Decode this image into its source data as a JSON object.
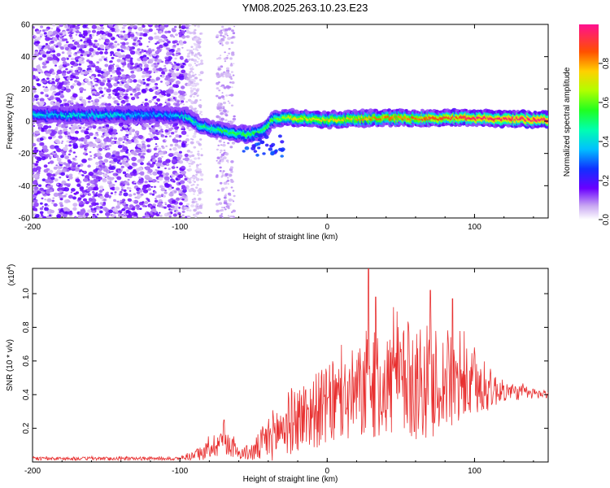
{
  "title": "YM08.2025.263.10.23.E23",
  "chart_data": [
    {
      "type": "heatmap",
      "xlabel": "Height of straight line (km)",
      "ylabel": "Frequency (Hz)",
      "xlim": [
        -200,
        150
      ],
      "ylim": [
        -60,
        60
      ],
      "xticks": [
        -200,
        -100,
        0,
        100
      ],
      "yticks": [
        -60,
        -40,
        -20,
        0,
        20,
        40,
        60
      ],
      "xtick_labels": [
        "-200",
        "-100",
        "0",
        "100"
      ],
      "ytick_labels": [
        "-60",
        "-40",
        "-20",
        "0",
        "20",
        "40",
        "60"
      ],
      "colorbar": {
        "label": "Normalized spectral amplitude",
        "range": [
          0,
          1
        ],
        "ticks": [
          0.0,
          0.2,
          0.4,
          0.6,
          0.8
        ],
        "tick_labels": [
          "0.0",
          "0.2",
          "0.4",
          "0.6",
          "0.8"
        ]
      },
      "ridge": [
        {
          "x": -200,
          "y": 4,
          "amp": 0.4
        },
        {
          "x": -150,
          "y": 4,
          "amp": 0.4
        },
        {
          "x": -110,
          "y": 4,
          "amp": 0.35
        },
        {
          "x": -95,
          "y": 3,
          "amp": 0.45
        },
        {
          "x": -85,
          "y": -3,
          "amp": 0.5
        },
        {
          "x": -75,
          "y": -5,
          "amp": 0.5
        },
        {
          "x": -65,
          "y": -7,
          "amp": 0.55
        },
        {
          "x": -55,
          "y": -8,
          "amp": 0.55
        },
        {
          "x": -45,
          "y": -7,
          "amp": 0.55
        },
        {
          "x": -35,
          "y": 2,
          "amp": 0.6
        },
        {
          "x": -20,
          "y": 2,
          "amp": 0.75
        },
        {
          "x": 0,
          "y": 1,
          "amp": 0.75
        },
        {
          "x": 30,
          "y": 2,
          "amp": 0.8
        },
        {
          "x": 60,
          "y": 2,
          "amp": 0.85
        },
        {
          "x": 100,
          "y": 2,
          "amp": 0.95
        },
        {
          "x": 150,
          "y": 1,
          "amp": 1.0
        }
      ]
    },
    {
      "type": "line",
      "xlabel": "Height of straight line (km)",
      "ylabel": "SNR (10 * v/v)",
      "y_multiplier": "(x10",
      "y_multiplier_exp": "4",
      "xlim": [
        -200,
        150
      ],
      "ylim": [
        0.0,
        1.15
      ],
      "xticks": [
        -200,
        -100,
        0,
        100
      ],
      "yticks": [
        0.2,
        0.4,
        0.6,
        0.8,
        1.0
      ],
      "xtick_labels": [
        "-200",
        "-100",
        "0",
        "100"
      ],
      "ytick_labels": [
        "0.2",
        "0.4",
        "0.6",
        "0.8",
        "1.0"
      ],
      "series": [
        {
          "color": "#e83030",
          "envelope": [
            {
              "x": -200,
              "base": 0.02,
              "amp": 0.01
            },
            {
              "x": -120,
              "base": 0.02,
              "amp": 0.01
            },
            {
              "x": -100,
              "base": 0.02,
              "amp": 0.01
            },
            {
              "x": -85,
              "base": 0.05,
              "amp": 0.04
            },
            {
              "x": -70,
              "base": 0.14,
              "amp": 0.1
            },
            {
              "x": -60,
              "base": 0.05,
              "amp": 0.03
            },
            {
              "x": -50,
              "base": 0.06,
              "amp": 0.06
            },
            {
              "x": -40,
              "base": 0.14,
              "amp": 0.14
            },
            {
              "x": -25,
              "base": 0.24,
              "amp": 0.2
            },
            {
              "x": -10,
              "base": 0.3,
              "amp": 0.22
            },
            {
              "x": 10,
              "base": 0.36,
              "amp": 0.26
            },
            {
              "x": 25,
              "base": 0.42,
              "amp": 0.3
            },
            {
              "x": 40,
              "base": 0.46,
              "amp": 0.32
            },
            {
              "x": 60,
              "base": 0.48,
              "amp": 0.36
            },
            {
              "x": 80,
              "base": 0.47,
              "amp": 0.3
            },
            {
              "x": 100,
              "base": 0.45,
              "amp": 0.2
            },
            {
              "x": 120,
              "base": 0.42,
              "amp": 0.06
            },
            {
              "x": 150,
              "base": 0.4,
              "amp": 0.02
            }
          ],
          "peaks": [
            {
              "x": 28,
              "y": 1.15
            },
            {
              "x": 70,
              "y": 1.02
            },
            {
              "x": 85,
              "y": 0.97
            },
            {
              "x": 33,
              "y": 0.98
            },
            {
              "x": 45,
              "y": 0.92
            },
            {
              "x": -70,
              "y": 0.25
            }
          ]
        }
      ]
    }
  ]
}
